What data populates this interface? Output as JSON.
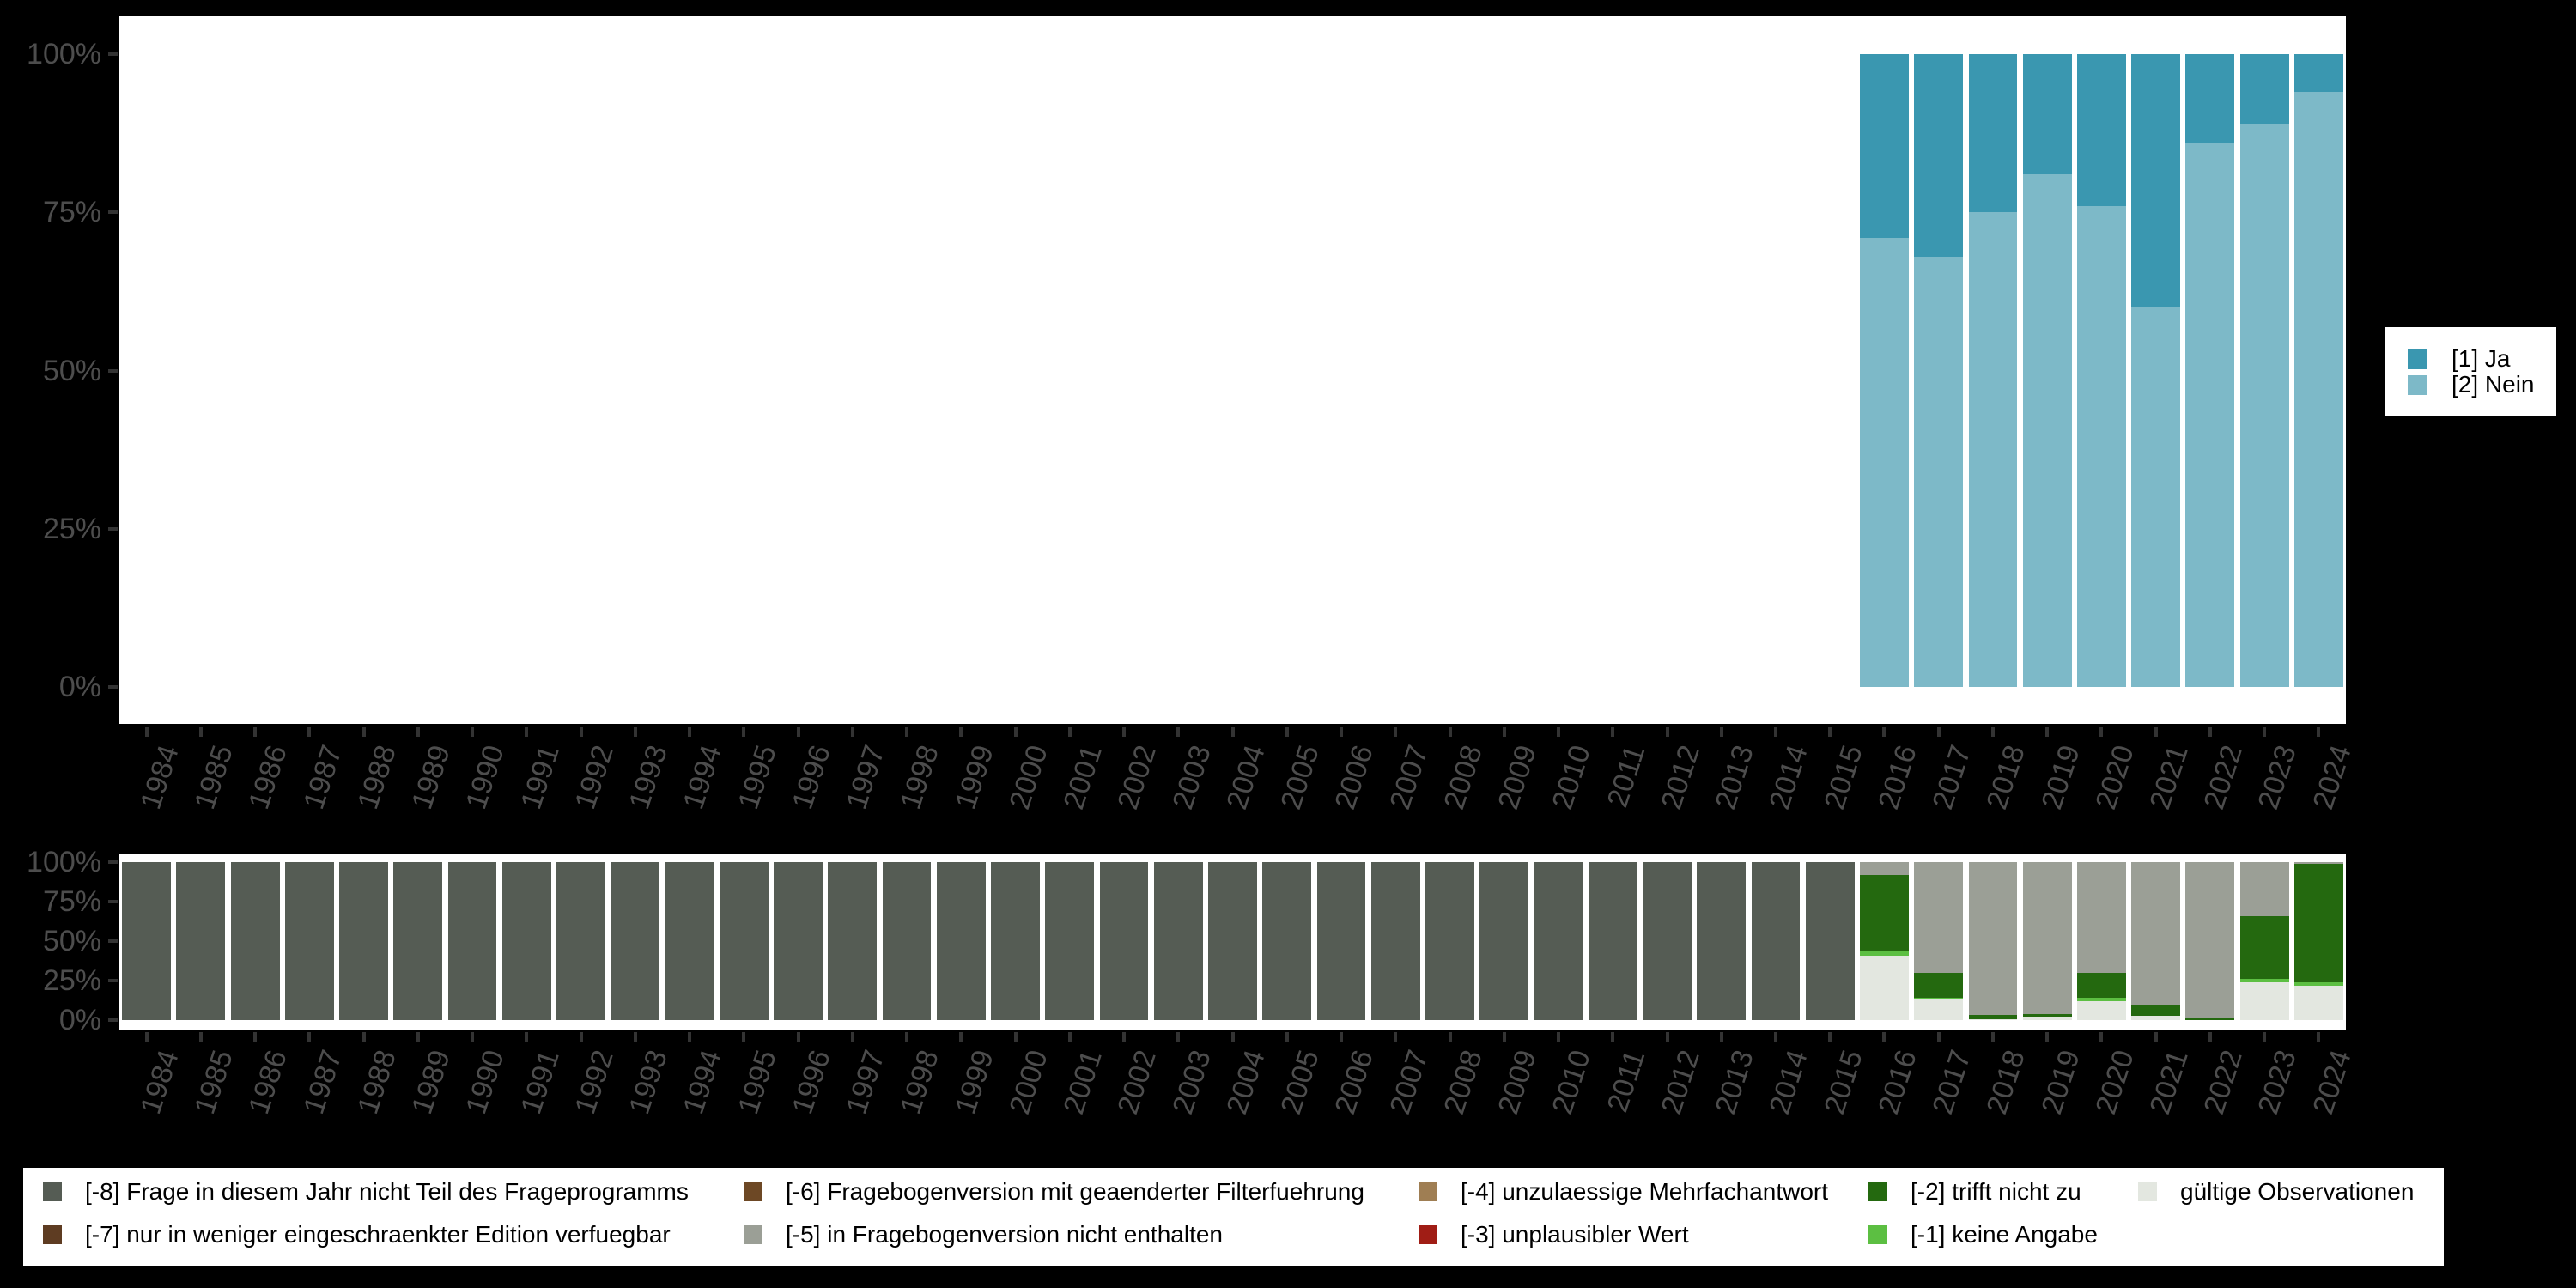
{
  "colors": {
    "background": "#000000",
    "panel": "#ffffff",
    "axis_text": "#4d4d4d",
    "tick": "#333333",
    "legend_text": "#000000"
  },
  "palette": {
    "ja": "#3a97b0",
    "nein": "#7db9c8",
    "m8": "#555c54",
    "m7": "#5e3c22",
    "m6": "#6d4825",
    "m5": "#9b9f96",
    "m4": "#9f7e53",
    "m3": "#a01d15",
    "m2": "#24690f",
    "m1": "#5cbf42",
    "valid": "#e3e7e0"
  },
  "years": [
    "1984",
    "1985",
    "1986",
    "1987",
    "1988",
    "1989",
    "1990",
    "1991",
    "1992",
    "1993",
    "1994",
    "1995",
    "1996",
    "1997",
    "1998",
    "1999",
    "2000",
    "2001",
    "2002",
    "2003",
    "2004",
    "2005",
    "2006",
    "2007",
    "2008",
    "2009",
    "2010",
    "2011",
    "2012",
    "2013",
    "2014",
    "2015",
    "2016",
    "2017",
    "2018",
    "2019",
    "2020",
    "2021",
    "2022",
    "2023",
    "2024"
  ],
  "chart_data": [
    {
      "id": "responses",
      "type": "bar",
      "stacked": true,
      "unit": "percent",
      "title": "",
      "xlabel": "",
      "ylabel": "",
      "ylim": [
        0,
        100
      ],
      "grid": false,
      "legend_position": "right",
      "y_ticks": [
        "100%",
        "75%",
        "50%",
        "25%",
        "0%"
      ],
      "categories_from": "years",
      "series": [
        {
          "key": "ja",
          "name": "[1] Ja",
          "values": [
            null,
            null,
            null,
            null,
            null,
            null,
            null,
            null,
            null,
            null,
            null,
            null,
            null,
            null,
            null,
            null,
            null,
            null,
            null,
            null,
            null,
            null,
            null,
            null,
            null,
            null,
            null,
            null,
            null,
            null,
            null,
            null,
            29,
            32,
            25,
            19,
            24,
            40,
            14,
            11,
            6
          ]
        },
        {
          "key": "nein",
          "name": "[2] Nein",
          "values": [
            null,
            null,
            null,
            null,
            null,
            null,
            null,
            null,
            null,
            null,
            null,
            null,
            null,
            null,
            null,
            null,
            null,
            null,
            null,
            null,
            null,
            null,
            null,
            null,
            null,
            null,
            null,
            null,
            null,
            null,
            null,
            null,
            71,
            68,
            75,
            81,
            76,
            60,
            86,
            89,
            94
          ]
        }
      ]
    },
    {
      "id": "missings",
      "type": "bar",
      "stacked": true,
      "unit": "percent",
      "title": "",
      "xlabel": "",
      "ylabel": "",
      "ylim": [
        0,
        100
      ],
      "grid": false,
      "legend_position": "bottom",
      "y_ticks": [
        "100%",
        "75%",
        "50%",
        "25%",
        "0%"
      ],
      "categories_from": "years",
      "series": [
        {
          "key": "m8",
          "name": "[-8] Frage in diesem Jahr nicht Teil des Frageprogramms",
          "values": [
            100,
            100,
            100,
            100,
            100,
            100,
            100,
            100,
            100,
            100,
            100,
            100,
            100,
            100,
            100,
            100,
            100,
            100,
            100,
            100,
            100,
            100,
            100,
            100,
            100,
            100,
            100,
            100,
            100,
            100,
            100,
            100,
            0,
            0,
            0,
            0,
            0,
            0,
            0,
            0,
            0
          ]
        },
        {
          "key": "m5",
          "name": "[-5] in Fragebogenversion nicht enthalten",
          "values": [
            0,
            0,
            0,
            0,
            0,
            0,
            0,
            0,
            0,
            0,
            0,
            0,
            0,
            0,
            0,
            0,
            0,
            0,
            0,
            0,
            0,
            0,
            0,
            0,
            0,
            0,
            0,
            0,
            0,
            0,
            0,
            0,
            8,
            70,
            97,
            96,
            70,
            90,
            99,
            34,
            1
          ]
        },
        {
          "key": "m2",
          "name": "[-2] trifft nicht zu",
          "values": [
            0,
            0,
            0,
            0,
            0,
            0,
            0,
            0,
            0,
            0,
            0,
            0,
            0,
            0,
            0,
            0,
            0,
            0,
            0,
            0,
            0,
            0,
            0,
            0,
            0,
            0,
            0,
            0,
            0,
            0,
            0,
            0,
            48,
            16,
            2.5,
            2,
            16,
            7.5,
            1,
            40,
            75
          ]
        },
        {
          "key": "m1",
          "name": "[-1] keine Angabe",
          "values": [
            0,
            0,
            0,
            0,
            0,
            0,
            0,
            0,
            0,
            0,
            0,
            0,
            0,
            0,
            0,
            0,
            0,
            0,
            0,
            0,
            0,
            0,
            0,
            0,
            0,
            0,
            0,
            0,
            0,
            0,
            0,
            0,
            3,
            1,
            0,
            0,
            2,
            0,
            0,
            2,
            2
          ]
        },
        {
          "key": "valid",
          "name": "gültige Observationen",
          "values": [
            0,
            0,
            0,
            0,
            0,
            0,
            0,
            0,
            0,
            0,
            0,
            0,
            0,
            0,
            0,
            0,
            0,
            0,
            0,
            0,
            0,
            0,
            0,
            0,
            0,
            0,
            0,
            0,
            0,
            0,
            0,
            0,
            41,
            13,
            0.5,
            2,
            12,
            2.5,
            0,
            24,
            22
          ]
        }
      ]
    }
  ],
  "legend_top": {
    "items": [
      {
        "key": "ja",
        "label": "[1] Ja"
      },
      {
        "key": "nein",
        "label": "[2] Nein"
      }
    ]
  },
  "legend_bottom": {
    "columns": [
      [
        "m8",
        "m7"
      ],
      [
        "m6",
        "m5"
      ],
      [
        "m4",
        "m3"
      ],
      [
        "m2",
        "m1"
      ],
      [
        "valid"
      ]
    ]
  },
  "categories": {
    "m8": {
      "label": "[-8] Frage in diesem Jahr nicht Teil des Frageprogramms"
    },
    "m7": {
      "label": "[-7] nur in weniger eingeschraenkter Edition verfuegbar"
    },
    "m6": {
      "label": "[-6] Fragebogenversion mit geaenderter Filterfuehrung"
    },
    "m5": {
      "label": "[-5] in Fragebogenversion nicht enthalten"
    },
    "m4": {
      "label": "[-4] unzulaessige Mehrfachantwort"
    },
    "m3": {
      "label": "[-3] unplausibler Wert"
    },
    "m2": {
      "label": "[-2] trifft nicht zu"
    },
    "m1": {
      "label": "[-1] keine Angabe"
    },
    "valid": {
      "label": "gültige Observationen"
    }
  }
}
